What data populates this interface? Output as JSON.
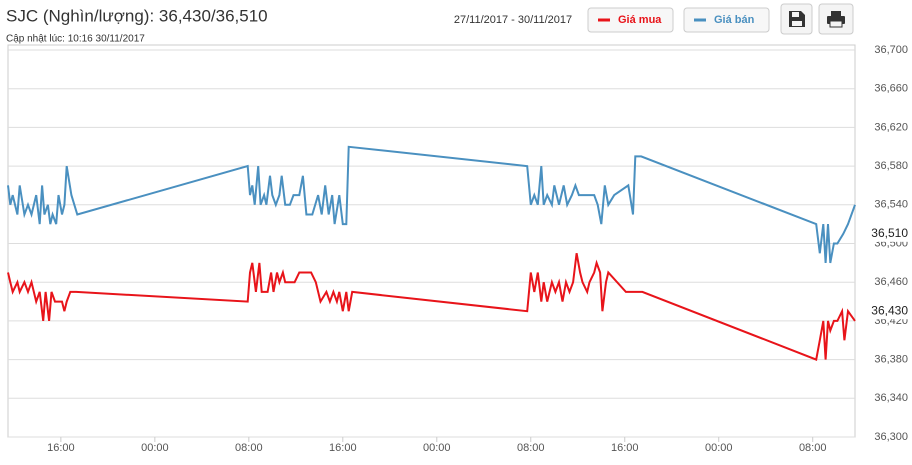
{
  "chart_data": {
    "type": "line",
    "title": "SJC (Nghìn/lượng): 36,430/36,510",
    "subtitle": "Cập nhật lúc: 10:16 30/11/2017",
    "date_range": "27/11/2017 - 30/11/2017",
    "xlim": [
      11.5,
      83.6
    ],
    "xticks": [
      {
        "value": 16,
        "label": "16:00"
      },
      {
        "value": 24,
        "label": "00:00"
      },
      {
        "value": 32,
        "label": "08:00"
      },
      {
        "value": 40,
        "label": "16:00"
      },
      {
        "value": 48,
        "label": "00:00"
      },
      {
        "value": 56,
        "label": "08:00"
      },
      {
        "value": 64,
        "label": "16:00"
      },
      {
        "value": 72,
        "label": "00:00"
      },
      {
        "value": 80,
        "label": "08:00"
      }
    ],
    "ylim": [
      36300,
      36700
    ],
    "yticks": [
      {
        "value": 36300,
        "label": "36,300"
      },
      {
        "value": 36340,
        "label": "36,340"
      },
      {
        "value": 36380,
        "label": "36,380"
      },
      {
        "value": 36420,
        "label": "36,420"
      },
      {
        "value": 36460,
        "label": "36,460"
      },
      {
        "value": 36500,
        "label": "36,500"
      },
      {
        "value": 36540,
        "label": "36,540"
      },
      {
        "value": 36580,
        "label": "36,580"
      },
      {
        "value": 36620,
        "label": "36,620"
      },
      {
        "value": 36660,
        "label": "36,660"
      },
      {
        "value": 36700,
        "label": "36,700"
      }
    ],
    "grid": true,
    "series": [
      {
        "name": "Giá mua",
        "color": "#e8141a",
        "current": {
          "value": 36430,
          "label": "36,430"
        },
        "x": [
          11.5,
          11.7,
          11.9,
          12.3,
          12.5,
          12.9,
          13.2,
          13.5,
          13.9,
          14.2,
          14.5,
          14.7,
          15.0,
          15.2,
          15.5,
          15.7,
          16.1,
          16.3,
          16.5,
          16.8,
          17.3,
          31.9,
          32.1,
          32.3,
          32.6,
          32.9,
          33.1,
          33.4,
          33.6,
          33.9,
          34.1,
          34.4,
          34.6,
          34.9,
          35.1,
          35.5,
          35.9,
          36.3,
          36.6,
          37.3,
          37.7,
          38.1,
          38.6,
          38.9,
          39.2,
          39.5,
          39.7,
          40.0,
          40.3,
          40.5,
          40.8,
          55.7,
          56.0,
          56.3,
          56.6,
          56.9,
          57.1,
          57.4,
          57.8,
          58.1,
          58.4,
          58.7,
          59.0,
          59.3,
          59.6,
          59.9,
          60.2,
          60.4,
          60.8,
          61.0,
          61.4,
          61.6,
          61.9,
          62.1,
          62.4,
          62.6,
          64.1,
          65.5,
          80.3,
          80.6,
          80.9,
          81.1,
          81.3,
          81.5,
          81.8,
          82.1,
          82.5,
          82.7,
          83.0,
          83.6
        ],
        "values": [
          36470,
          36460,
          36450,
          36460,
          36450,
          36460,
          36450,
          36460,
          36440,
          36450,
          36420,
          36450,
          36420,
          36450,
          36440,
          36440,
          36440,
          36430,
          36440,
          36450,
          36450,
          36440,
          36470,
          36480,
          36450,
          36480,
          36450,
          36450,
          36450,
          36470,
          36450,
          36470,
          36460,
          36470,
          36460,
          36460,
          36460,
          36470,
          36470,
          36470,
          36460,
          36440,
          36450,
          36440,
          36450,
          36440,
          36450,
          36430,
          36450,
          36430,
          36450,
          36430,
          36470,
          36450,
          36470,
          36440,
          36460,
          36440,
          36460,
          36450,
          36460,
          36440,
          36460,
          36450,
          36460,
          36490,
          36470,
          36460,
          36450,
          36460,
          36470,
          36480,
          36470,
          36430,
          36460,
          36470,
          36450,
          36450,
          36380,
          36400,
          36420,
          36380,
          36420,
          36410,
          36420,
          36420,
          36430,
          36400,
          36430,
          36420
        ]
      },
      {
        "name": "Giá bán",
        "color": "#4a90c0",
        "current": {
          "value": 36510,
          "label": "36,510"
        },
        "x": [
          11.5,
          11.7,
          11.9,
          12.3,
          12.5,
          12.9,
          13.2,
          13.5,
          13.9,
          14.2,
          14.4,
          14.6,
          14.9,
          15.1,
          15.3,
          15.6,
          15.8,
          16.1,
          16.3,
          16.5,
          16.9,
          17.4,
          31.9,
          32.1,
          32.3,
          32.5,
          32.8,
          33.0,
          33.3,
          33.5,
          33.8,
          34.0,
          34.3,
          34.6,
          34.8,
          35.1,
          35.5,
          35.8,
          36.3,
          36.6,
          36.9,
          37.4,
          37.9,
          38.2,
          38.5,
          38.8,
          39.1,
          39.3,
          39.7,
          40.0,
          40.3,
          40.5,
          55.7,
          56.0,
          56.3,
          56.6,
          56.9,
          57.1,
          57.4,
          57.8,
          58.0,
          58.4,
          58.8,
          59.1,
          59.5,
          59.8,
          60.1,
          61.4,
          61.7,
          62.0,
          62.3,
          62.6,
          63.1,
          64.3,
          64.7,
          64.9,
          65.4,
          80.3,
          80.6,
          80.9,
          81.1,
          81.3,
          81.5,
          81.8,
          82.1,
          82.6,
          83.0,
          83.6
        ],
        "values": [
          36560,
          36540,
          36550,
          36530,
          36560,
          36530,
          36540,
          36530,
          36550,
          36520,
          36560,
          36530,
          36540,
          36520,
          36530,
          36520,
          36550,
          36530,
          36540,
          36580,
          36550,
          36530,
          36580,
          36550,
          36560,
          36540,
          36580,
          36540,
          36550,
          36540,
          36570,
          36550,
          36540,
          36550,
          36570,
          36540,
          36540,
          36550,
          36550,
          36570,
          36530,
          36530,
          36550,
          36530,
          36560,
          36530,
          36550,
          36520,
          36550,
          36520,
          36520,
          36600,
          36580,
          36540,
          36550,
          36540,
          36580,
          36540,
          36550,
          36540,
          36560,
          36540,
          36560,
          36540,
          36550,
          36560,
          36550,
          36550,
          36540,
          36520,
          36560,
          36540,
          36550,
          36560,
          36530,
          36590,
          36590,
          36520,
          36490,
          36520,
          36480,
          36520,
          36480,
          36500,
          36500,
          36510,
          36520,
          36540
        ]
      }
    ]
  }
}
